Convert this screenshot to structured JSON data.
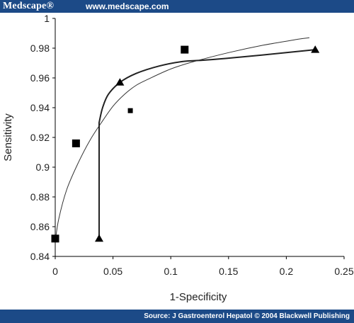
{
  "header": {
    "brand": "Medscape®",
    "url": "www.medscape.com"
  },
  "footer": {
    "source": "Source: J Gastroenterol Hepatol © 2004 Blackwell Publishing"
  },
  "chart_data": {
    "type": "scatter",
    "xlabel": "1-Specificity",
    "ylabel": "Sensitivity",
    "xlim": [
      0,
      0.25
    ],
    "ylim": [
      0.84,
      1
    ],
    "x_ticks": [
      0,
      0.05,
      0.1,
      0.15,
      0.2,
      0.25
    ],
    "x_tick_labels": [
      "0",
      "0.05",
      "0.1",
      "0.15",
      "0.2",
      "0.25"
    ],
    "y_ticks": [
      0.84,
      0.86,
      0.88,
      0.9,
      0.92,
      0.94,
      0.96,
      0.98,
      1
    ],
    "y_tick_labels": [
      "0.84",
      "0.86",
      "0.88",
      "0.9",
      "0.92",
      "0.94",
      "0.96",
      "0.98",
      "1"
    ],
    "grid": false,
    "series": [
      {
        "marker": "square",
        "points": [
          {
            "x": 0.0,
            "y": 0.852,
            "size": "large"
          },
          {
            "x": 0.018,
            "y": 0.916,
            "size": "large"
          },
          {
            "x": 0.065,
            "y": 0.938,
            "size": "small"
          },
          {
            "x": 0.112,
            "y": 0.979,
            "size": "large"
          }
        ]
      },
      {
        "marker": "triangle",
        "points": [
          {
            "x": 0.038,
            "y": 0.852
          },
          {
            "x": 0.056,
            "y": 0.957
          },
          {
            "x": 0.225,
            "y": 0.979
          }
        ]
      }
    ],
    "curves": [
      {
        "style": "thin",
        "points": [
          [
            0.0,
            0.85
          ],
          [
            0.003,
            0.865
          ],
          [
            0.01,
            0.885
          ],
          [
            0.02,
            0.903
          ],
          [
            0.03,
            0.918
          ],
          [
            0.04,
            0.93
          ],
          [
            0.05,
            0.941
          ],
          [
            0.06,
            0.949
          ],
          [
            0.07,
            0.955
          ],
          [
            0.08,
            0.959
          ],
          [
            0.1,
            0.966
          ],
          [
            0.12,
            0.971
          ],
          [
            0.15,
            0.977
          ],
          [
            0.18,
            0.982
          ],
          [
            0.21,
            0.986
          ],
          [
            0.22,
            0.987
          ]
        ]
      },
      {
        "style": "thick",
        "points": [
          [
            0.038,
            0.852
          ],
          [
            0.038,
            0.93
          ],
          [
            0.041,
            0.94
          ],
          [
            0.046,
            0.949
          ],
          [
            0.056,
            0.957
          ],
          [
            0.07,
            0.963
          ],
          [
            0.09,
            0.968
          ],
          [
            0.11,
            0.971
          ],
          [
            0.13,
            0.972
          ],
          [
            0.16,
            0.974
          ],
          [
            0.2,
            0.977
          ],
          [
            0.225,
            0.979
          ]
        ]
      }
    ]
  }
}
